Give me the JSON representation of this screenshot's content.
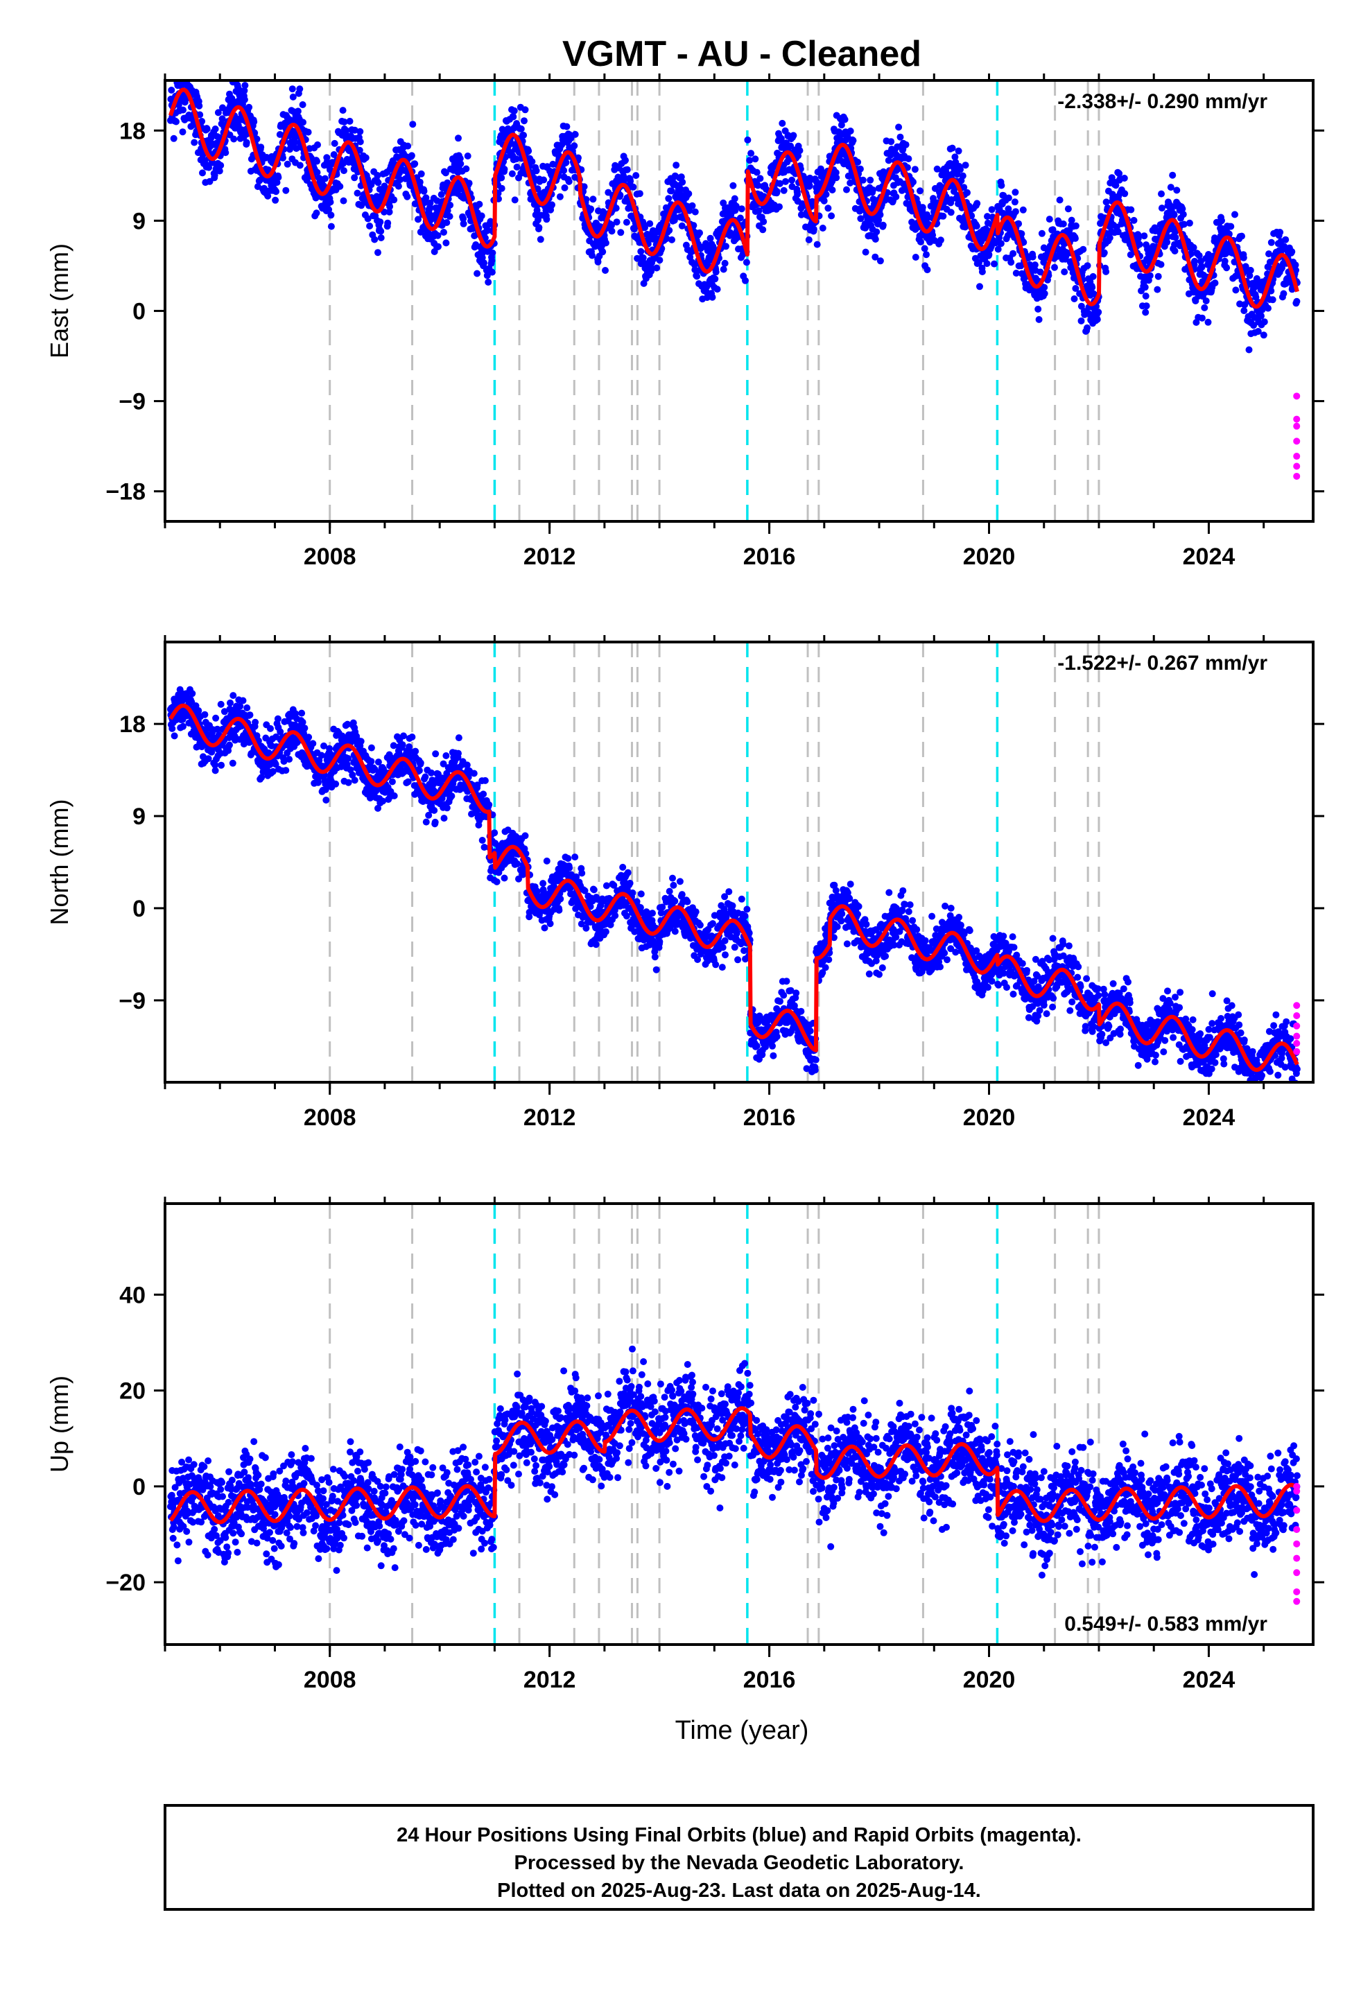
{
  "title": "VGMT  - AU - Cleaned",
  "x_axis_label": "Time (year)",
  "footer": [
    "24 Hour Positions Using Final Orbits (blue) and Rapid Orbits (magenta).",
    "Processed by the Nevada Geodetic Laboratory.",
    "Plotted on 2025-Aug-23. Last data on 2025-Aug-14."
  ],
  "colors": {
    "final_orbits": "#0000ff",
    "rapid_orbits": "#ff00ff",
    "model": "#ff0000",
    "equipment_change": "#c0c0c0",
    "earthquake": "#00e5ee"
  },
  "chart_data": [
    {
      "type": "scatter",
      "component": "east",
      "ylabel": "East (mm)",
      "rate_text": "-2.338+/- 0.290 mm/yr",
      "xlim": [
        2005.0,
        2025.9
      ],
      "ylim": [
        -21,
        23
      ],
      "yticks": [
        -18,
        -9,
        0,
        9,
        18
      ],
      "xticks": [
        2008,
        2012,
        2016,
        2020,
        2024
      ],
      "series": [
        {
          "name": "Final Orbits",
          "style": "points"
        },
        {
          "name": "Rapid Orbits",
          "style": "points"
        },
        {
          "name": "Model",
          "style": "line"
        }
      ],
      "model": {
        "intercept": 19.5,
        "t0": 2005.1,
        "rate": -1.75,
        "annual_amp": 3.0,
        "annual_phase": 0.35,
        "scatter": 1.6,
        "offsets": [
          {
            "t": 2011.0,
            "dy": 6.0
          },
          {
            "t": 2012.55,
            "dy": -1.5
          },
          {
            "t": 2015.6,
            "dy": 8.5
          },
          {
            "t": 2016.85,
            "dy": 2.5
          },
          {
            "t": 2020.15,
            "dy": -2.0
          },
          {
            "t": 2022.0,
            "dy": 5.0
          }
        ],
        "t_end": 2025.61
      },
      "rapid_points": {
        "t": 2025.6,
        "y": [
          -16.5,
          -15.5,
          -14.5,
          -13.0,
          -11.5,
          -10.8,
          -8.5
        ]
      }
    },
    {
      "type": "scatter",
      "component": "north",
      "ylabel": "North (mm)",
      "rate_text": "-1.522+/- 0.267 mm/yr",
      "xlim": [
        2005.0,
        2025.9
      ],
      "ylim": [
        -17,
        26
      ],
      "yticks": [
        -9,
        0,
        9,
        18
      ],
      "xticks": [
        2008,
        2012,
        2016,
        2020,
        2024
      ],
      "series": [
        {
          "name": "Final Orbits",
          "style": "points"
        },
        {
          "name": "Rapid Orbits",
          "style": "points"
        },
        {
          "name": "Model",
          "style": "line"
        }
      ],
      "model": {
        "intercept": 18.5,
        "t0": 2005.1,
        "rate": -1.3,
        "annual_amp": 1.6,
        "annual_phase": 0.35,
        "scatter": 1.2,
        "offsets": [
          {
            "t": 2010.9,
            "dy": -4.5
          },
          {
            "t": 2011.0,
            "dy": -1.5
          },
          {
            "t": 2011.6,
            "dy": -2.0
          },
          {
            "t": 2015.65,
            "dy": -7.5
          },
          {
            "t": 2016.85,
            "dy": 9.0
          },
          {
            "t": 2017.1,
            "dy": 2.5
          },
          {
            "t": 2020.15,
            "dy": -1.0
          },
          {
            "t": 2022.0,
            "dy": -2.0
          }
        ],
        "t_end": 2025.61
      },
      "rapid_points": {
        "t": 2025.6,
        "y": [
          -14.0,
          -13.2,
          -12.5,
          -11.5,
          -10.5,
          -9.5
        ]
      }
    },
    {
      "type": "scatter",
      "component": "up",
      "ylabel": "Up (mm)",
      "rate_text": "0.549+/- 0.583 mm/yr",
      "xlim": [
        2005.0,
        2025.9
      ],
      "ylim": [
        -33,
        59
      ],
      "yticks": [
        -20,
        0,
        20,
        40
      ],
      "xticks": [
        2008,
        2012,
        2016,
        2020,
        2024
      ],
      "series": [
        {
          "name": "Final Orbits",
          "style": "points"
        },
        {
          "name": "Rapid Orbits",
          "style": "points"
        },
        {
          "name": "Model",
          "style": "line"
        }
      ],
      "model": {
        "intercept": -4.5,
        "t0": 2005.1,
        "rate": 0.25,
        "annual_amp": 3.2,
        "annual_phase": 0.5,
        "scatter": 4.5,
        "offsets": [
          {
            "t": 2011.0,
            "dy": 13.0
          },
          {
            "t": 2013.0,
            "dy": 2.0
          },
          {
            "t": 2015.65,
            "dy": -4.0
          },
          {
            "t": 2016.85,
            "dy": -4.5
          },
          {
            "t": 2020.15,
            "dy": -10.0
          }
        ],
        "t_end": 2025.61
      },
      "rapid_points": {
        "t": 2025.6,
        "y": [
          -24.0,
          -22.0,
          -18.0,
          -15.0,
          -12.0,
          -9.0,
          -5.0,
          -1.0,
          0.0
        ]
      }
    }
  ],
  "equipment_changes": [
    2008.0,
    2009.5,
    2011.45,
    2012.45,
    2012.9,
    2013.5,
    2013.6,
    2014.0,
    2016.7,
    2016.9,
    2018.8,
    2021.2,
    2021.8,
    2022.0
  ],
  "earthquakes": [
    2011.0,
    2015.6,
    2020.15
  ]
}
